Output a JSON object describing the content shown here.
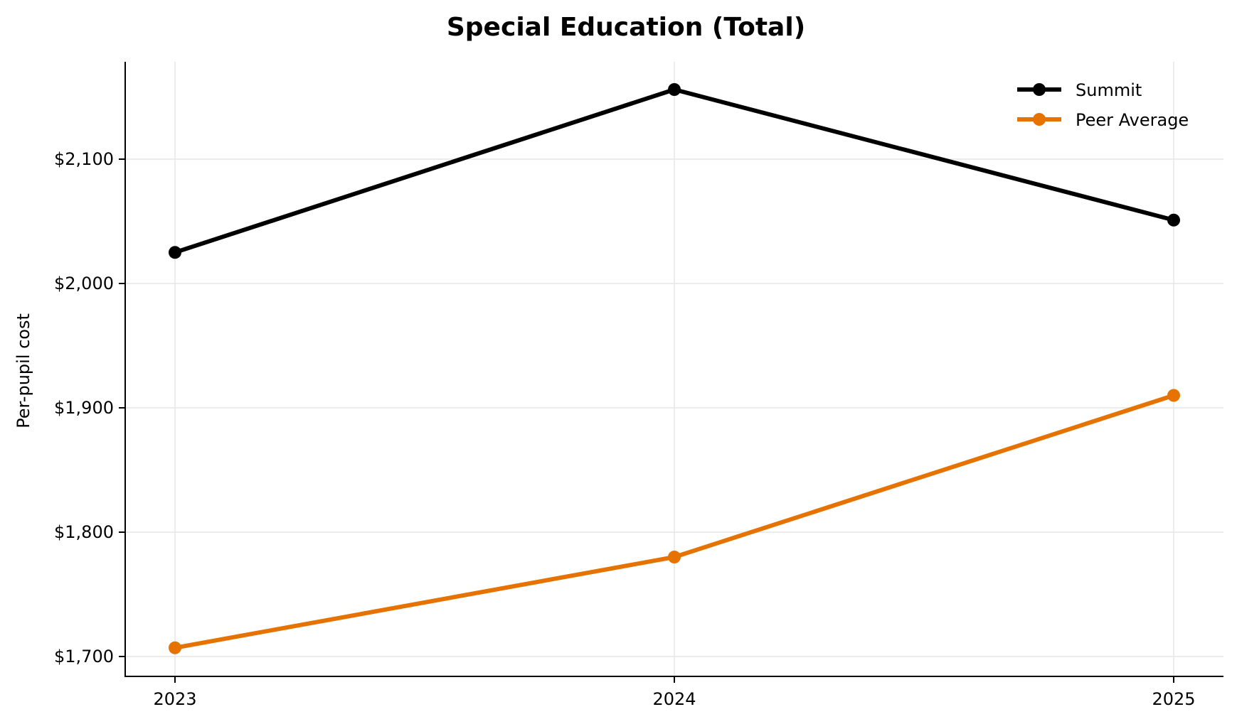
{
  "chart_data": {
    "type": "line",
    "title": "Special Education (Total)",
    "xlabel": "",
    "ylabel": "Per-pupil cost",
    "x": [
      "2023",
      "2024",
      "2025"
    ],
    "categories": [
      "2023",
      "2024",
      "2025"
    ],
    "series": [
      {
        "name": "Summit",
        "color": "#000000",
        "values": [
          2025,
          2156,
          2051
        ]
      },
      {
        "name": "Peer Average",
        "color": "#E67300",
        "values": [
          1707,
          1780,
          1910
        ]
      }
    ],
    "ylim": [
      1684,
      2178
    ],
    "yticks": [
      1700,
      1800,
      1900,
      2000,
      2100
    ],
    "ytick_labels": [
      "$1,700",
      "$1,800",
      "$1,900",
      "$2,000",
      "$2,100"
    ],
    "grid": true,
    "legend_position": "upper right"
  }
}
